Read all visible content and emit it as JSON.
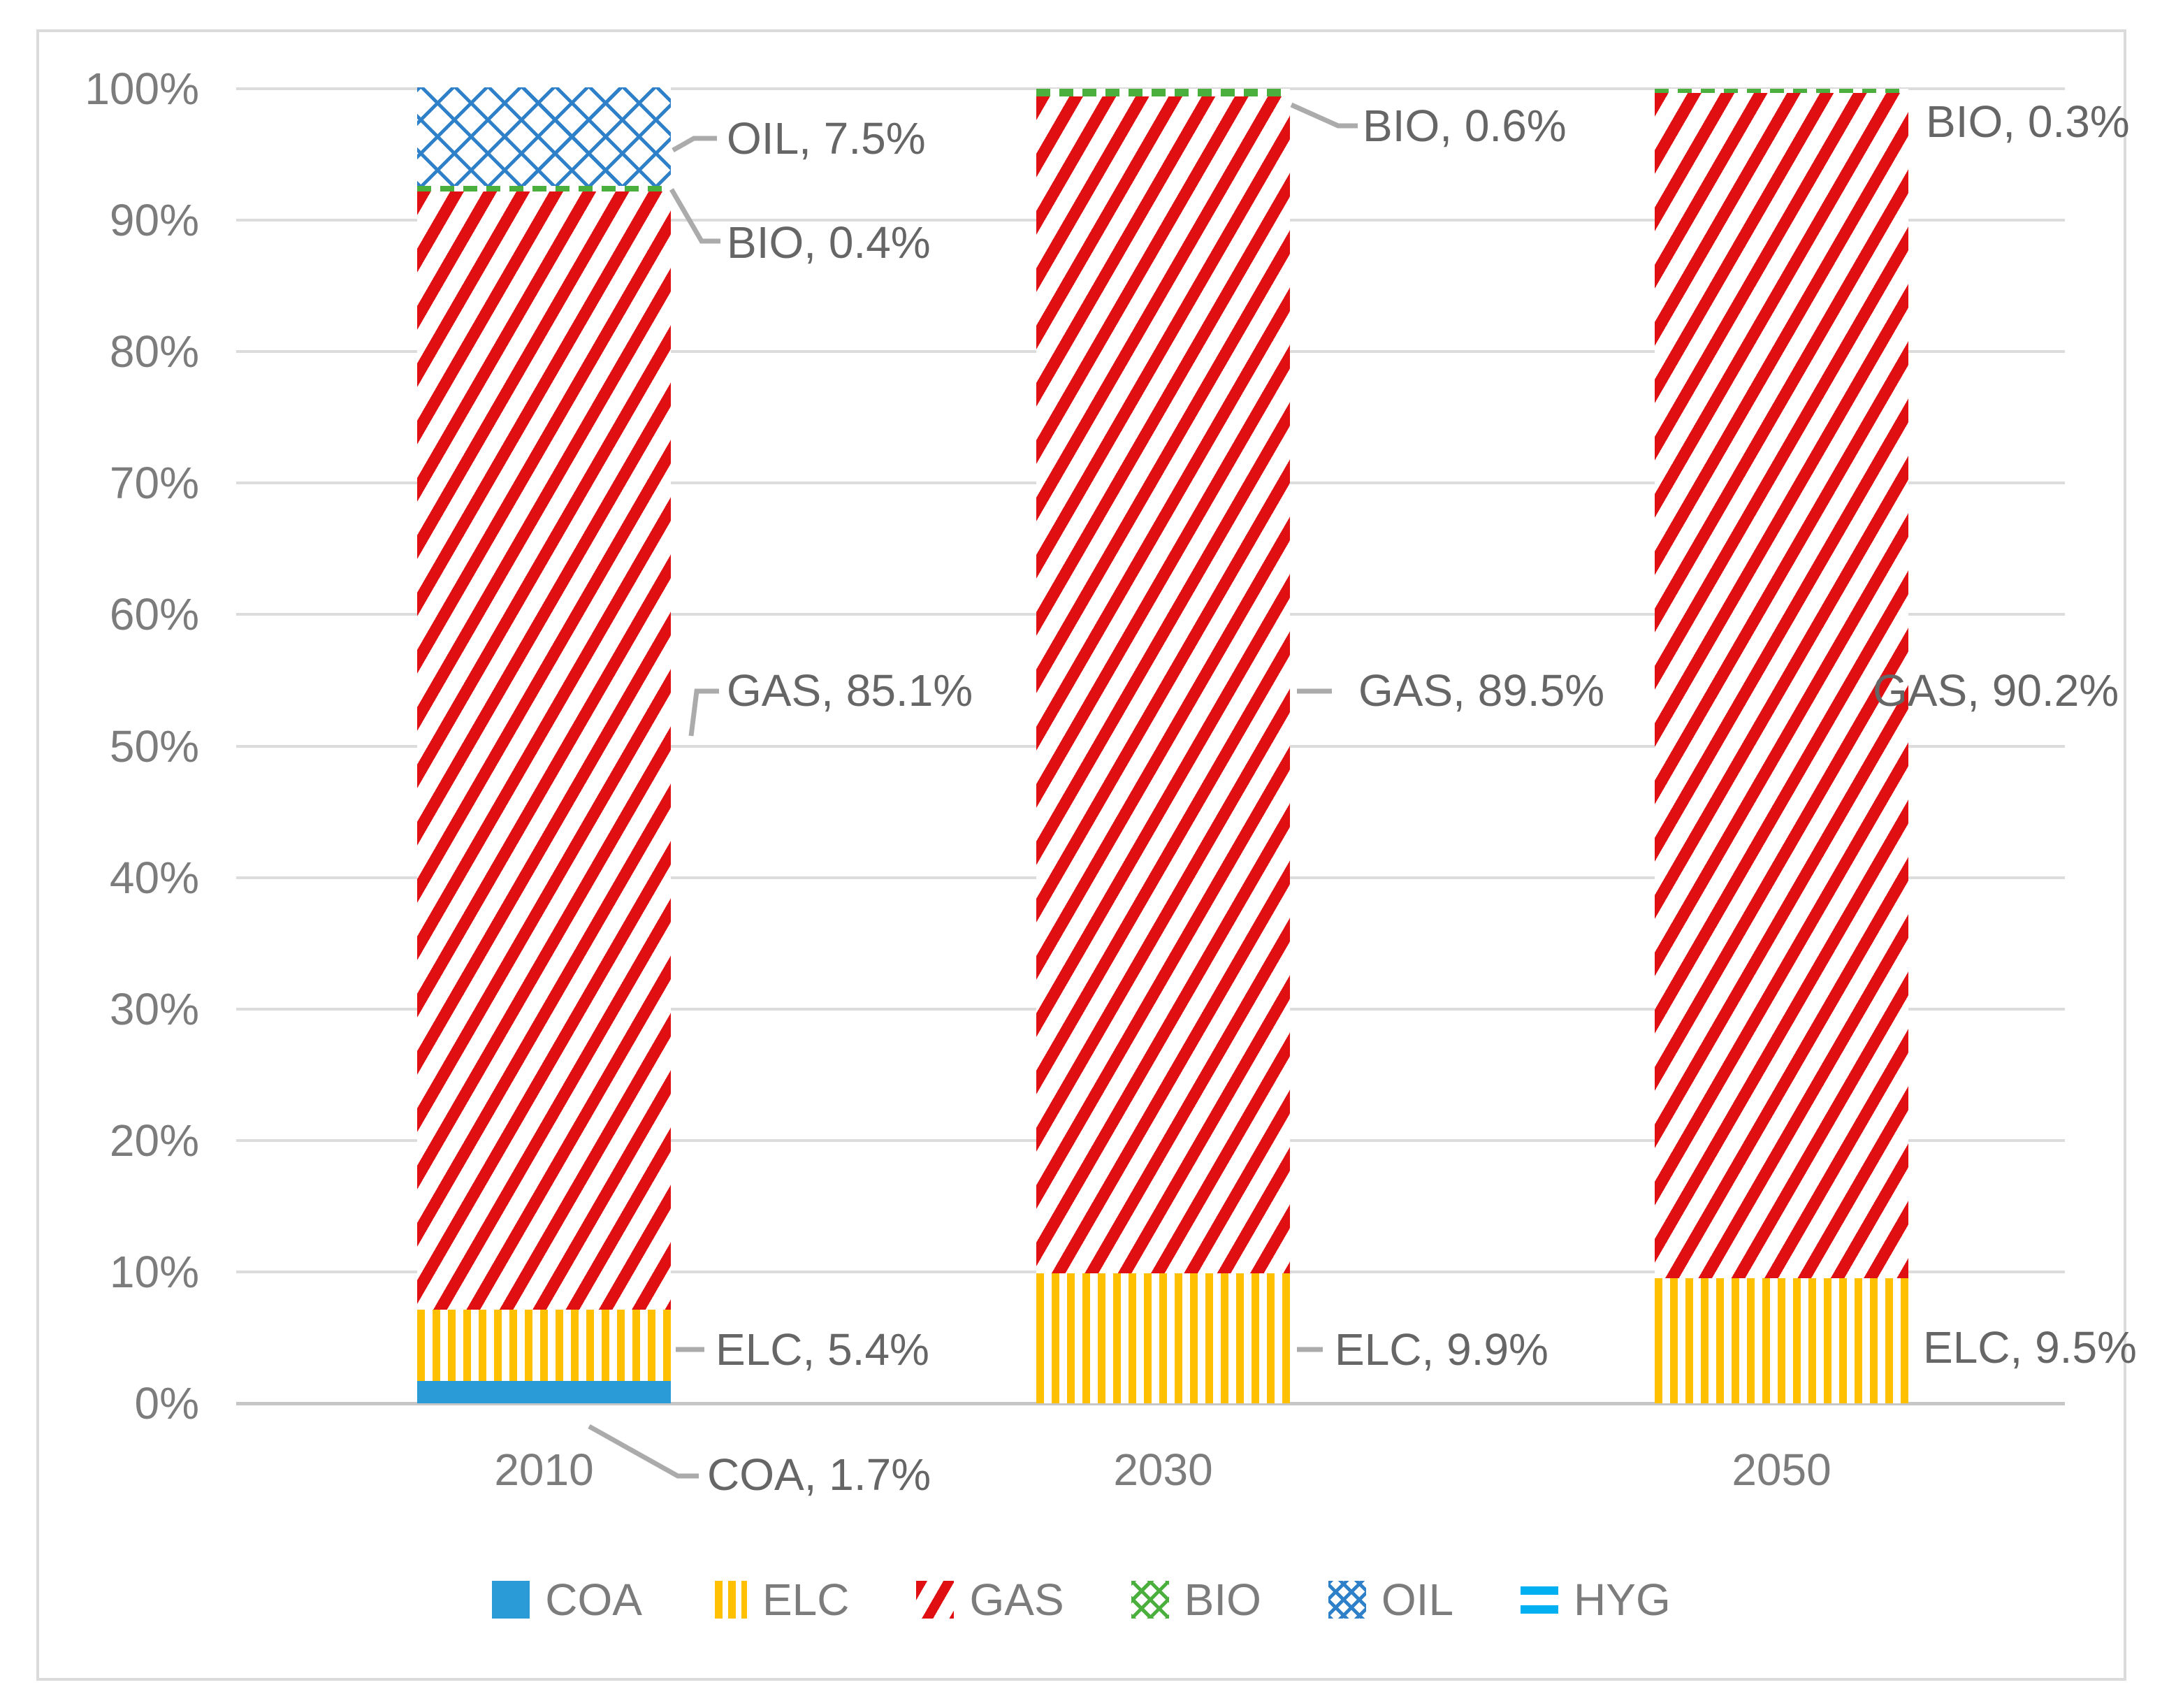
{
  "chart_data": {
    "type": "bar",
    "stacked": "percent",
    "categories": [
      "2010",
      "2030",
      "2050"
    ],
    "series": [
      {
        "name": "COA",
        "values": [
          1.7,
          0,
          0
        ]
      },
      {
        "name": "ELC",
        "values": [
          5.4,
          9.9,
          9.5
        ]
      },
      {
        "name": "GAS",
        "values": [
          85.1,
          89.5,
          90.2
        ]
      },
      {
        "name": "BIO",
        "values": [
          0.4,
          0.6,
          0.3
        ]
      },
      {
        "name": "OIL",
        "values": [
          7.5,
          0,
          0
        ]
      },
      {
        "name": "HYG",
        "values": [
          0,
          0,
          0
        ]
      }
    ],
    "y_axis": {
      "ticks": [
        "0%",
        "10%",
        "20%",
        "30%",
        "40%",
        "50%",
        "60%",
        "70%",
        "80%",
        "90%",
        "100%"
      ],
      "min": 0,
      "max": 100,
      "grid": true
    },
    "legend": {
      "position": "bottom",
      "entries": [
        "COA",
        "ELC",
        "GAS",
        "BIO",
        "OIL",
        "HYG"
      ]
    },
    "data_labels": [
      "OIL, 7.5%",
      "BIO, 0.4%",
      "GAS, 85.1%",
      "ELC, 5.4%",
      "COA, 1.7%",
      "BIO, 0.6%",
      "GAS, 89.5%",
      "ELC, 9.9%",
      "BIO, 0.3%",
      "GAS, 90.2%",
      "ELC, 9.5%"
    ]
  },
  "colors": {
    "COA": "#2B9BD7",
    "ELC": "#FFC000",
    "GAS": "#E01012",
    "BIO": "#4AAF3C",
    "OIL": "#2E80C8",
    "HYG": "#00B0F0",
    "gridline": "#DCDCDC",
    "axis_line": "#C6C6C6",
    "tick_text": "#7C7C7C",
    "data_label_text": "#666666",
    "legend_text": "#7C7C7C",
    "leader_line": "#ABABAB",
    "frame_border": "#DBDBDB"
  }
}
